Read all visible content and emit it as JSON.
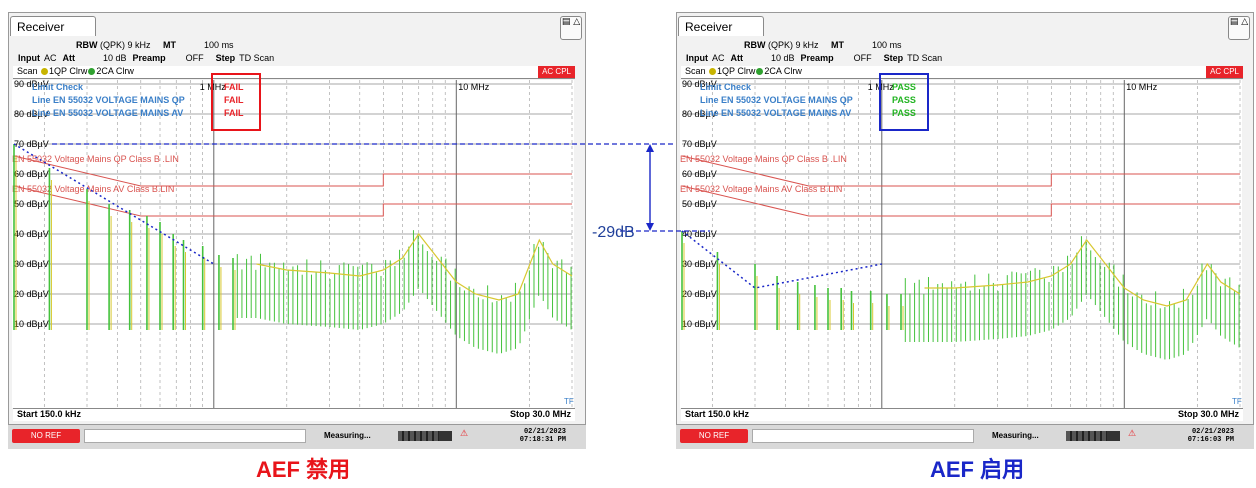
{
  "panels": [
    {
      "id": "left",
      "tab_label": "Receiver",
      "rbw_label": "RBW",
      "rbw_value": "(QPK) 9 kHz",
      "mt_label": "MT",
      "mt_value": "100 ms",
      "input_label": "Input",
      "input_value": "AC",
      "att_label": "Att",
      "att_value": "10 dB",
      "preamp_label": "Preamp",
      "preamp_value": "OFF",
      "step_label": "Step",
      "step_value": "TD Scan",
      "scan_label": "Scan",
      "trace1_label": "1QP Clrw",
      "trace2_label": "2CA Clrw",
      "acc_label": "AC CPL",
      "limit_check_title": "Limit Check",
      "limit_check_rows": [
        "Line EN 55032 VOLTAGE MAINS QP",
        "Line EN 55032 VOLTAGE MAINS AV"
      ],
      "limit_results": [
        "FAIL",
        "FAIL",
        "FAIL"
      ],
      "result_color": "#e8242a",
      "highlight_color": "#e8141a",
      "freq_1mhz": "1 MHz",
      "freq_10mhz": "10 MHz",
      "limit_qp_label": "EN 55032 Voltage Mains QP Class B .LIN",
      "limit_av_label": "EN 55032 Voltage Mains AV Class B.LIN",
      "start_label": "Start 150.0 kHz",
      "stop_label": "Stop 30.0 MHz",
      "tf_label": "TF",
      "noref_label": "NO REF",
      "measuring_label": "Measuring...",
      "progress": 0.75,
      "date": "02/21/2023",
      "time": "07:18:31 PM"
    },
    {
      "id": "right",
      "tab_label": "Receiver",
      "rbw_label": "RBW",
      "rbw_value": "(QPK) 9 kHz",
      "mt_label": "MT",
      "mt_value": "100 ms",
      "input_label": "Input",
      "input_value": "AC",
      "att_label": "Att",
      "att_value": "10 dB",
      "preamp_label": "Preamp",
      "preamp_value": "OFF",
      "step_label": "Step",
      "step_value": "TD Scan",
      "scan_label": "Scan",
      "trace1_label": "1QP Clrw",
      "trace2_label": "2CA Clrw",
      "acc_label": "AC CPL",
      "limit_check_title": "Limit Check",
      "limit_check_rows": [
        "Line EN 55032 VOLTAGE MAINS QP",
        "Line EN 55032 VOLTAGE MAINS AV"
      ],
      "limit_results": [
        "PASS",
        "PASS",
        "PASS"
      ],
      "result_color": "#22b422",
      "highlight_color": "#1a27c8",
      "freq_1mhz": "1 MHz",
      "freq_10mhz": "10 MHz",
      "limit_qp_label": "EN 55032 Voltage Mains QP Class B .LIN",
      "limit_av_label": "EN 55032 Voltage Mains AV Class B.LIN",
      "start_label": "Start 150.0 kHz",
      "stop_label": "Stop 30.0 MHz",
      "tf_label": "TF",
      "noref_label": "NO REF",
      "measuring_label": "Measuring...",
      "progress": 0.75,
      "date": "02/21/2023",
      "time": "07:16:03 PM"
    }
  ],
  "captions": {
    "left": "AEF 禁用",
    "right": "AEF 启用"
  },
  "delta_label": "-29dB",
  "chart_data": {
    "type": "line",
    "x_scale": "log",
    "xlim": [
      0.15,
      30
    ],
    "ylim": [
      0,
      100
    ],
    "y_unit": "dBµV",
    "y_ticks": [
      10,
      20,
      30,
      40,
      50,
      60,
      70,
      80,
      90
    ],
    "y_tick_labels": [
      "10 dBµV",
      "20 dBµV",
      "30 dBµV",
      "40 dBµV",
      "50 dBµV",
      "60 dBµV",
      "70 dBµV",
      "80 dBµV",
      "90 dBµV"
    ],
    "limits": [
      {
        "name": "EN 55032 Voltage Mains QP Class B .LIN",
        "points": [
          [
            0.15,
            66
          ],
          [
            0.5,
            56
          ],
          [
            5,
            56
          ],
          [
            5,
            60
          ],
          [
            30,
            60
          ]
        ]
      },
      {
        "name": "EN 55032 Voltage Mains AV Class B.LIN",
        "points": [
          [
            0.15,
            56
          ],
          [
            0.5,
            46
          ],
          [
            5,
            46
          ],
          [
            5,
            50
          ],
          [
            30,
            50
          ]
        ]
      }
    ],
    "peak_level_left_dbuv": 70,
    "peak_level_right_dbuv": 41,
    "panels": [
      {
        "id": "left",
        "harmonics": [
          [
            0.15,
            70
          ],
          [
            0.21,
            62
          ],
          [
            0.3,
            55
          ],
          [
            0.37,
            50
          ],
          [
            0.45,
            48
          ],
          [
            0.53,
            46
          ],
          [
            0.6,
            44
          ],
          [
            0.68,
            40
          ],
          [
            0.75,
            38
          ],
          [
            0.9,
            36
          ],
          [
            1.05,
            33
          ],
          [
            1.2,
            32
          ]
        ],
        "envelope": [
          [
            1.5,
            30
          ],
          [
            2,
            28
          ],
          [
            3,
            27
          ],
          [
            4,
            26
          ],
          [
            5,
            28
          ],
          [
            6,
            32
          ],
          [
            7,
            40
          ],
          [
            8,
            34
          ],
          [
            10,
            24
          ],
          [
            12,
            20
          ],
          [
            15,
            18
          ],
          [
            18,
            20
          ],
          [
            22,
            38
          ],
          [
            25,
            30
          ],
          [
            30,
            26
          ]
        ],
        "peak_trend": [
          [
            0.15,
            70
          ],
          [
            1.0,
            30
          ]
        ]
      },
      {
        "id": "right",
        "harmonics": [
          [
            0.15,
            41
          ],
          [
            0.21,
            34
          ],
          [
            0.3,
            30
          ],
          [
            0.37,
            26
          ],
          [
            0.45,
            24
          ],
          [
            0.53,
            23
          ],
          [
            0.6,
            22
          ],
          [
            0.68,
            22
          ],
          [
            0.75,
            21
          ],
          [
            0.9,
            21
          ],
          [
            1.05,
            20
          ],
          [
            1.2,
            20
          ]
        ],
        "envelope": [
          [
            1.5,
            22
          ],
          [
            2,
            22
          ],
          [
            3,
            23
          ],
          [
            4,
            24
          ],
          [
            5,
            26
          ],
          [
            6,
            30
          ],
          [
            7,
            38
          ],
          [
            8,
            32
          ],
          [
            10,
            22
          ],
          [
            12,
            18
          ],
          [
            15,
            16
          ],
          [
            18,
            18
          ],
          [
            22,
            30
          ],
          [
            25,
            24
          ],
          [
            30,
            20
          ]
        ],
        "peak_trend": [
          [
            0.15,
            41
          ],
          [
            0.3,
            22
          ],
          [
            1.0,
            30
          ]
        ]
      }
    ]
  }
}
